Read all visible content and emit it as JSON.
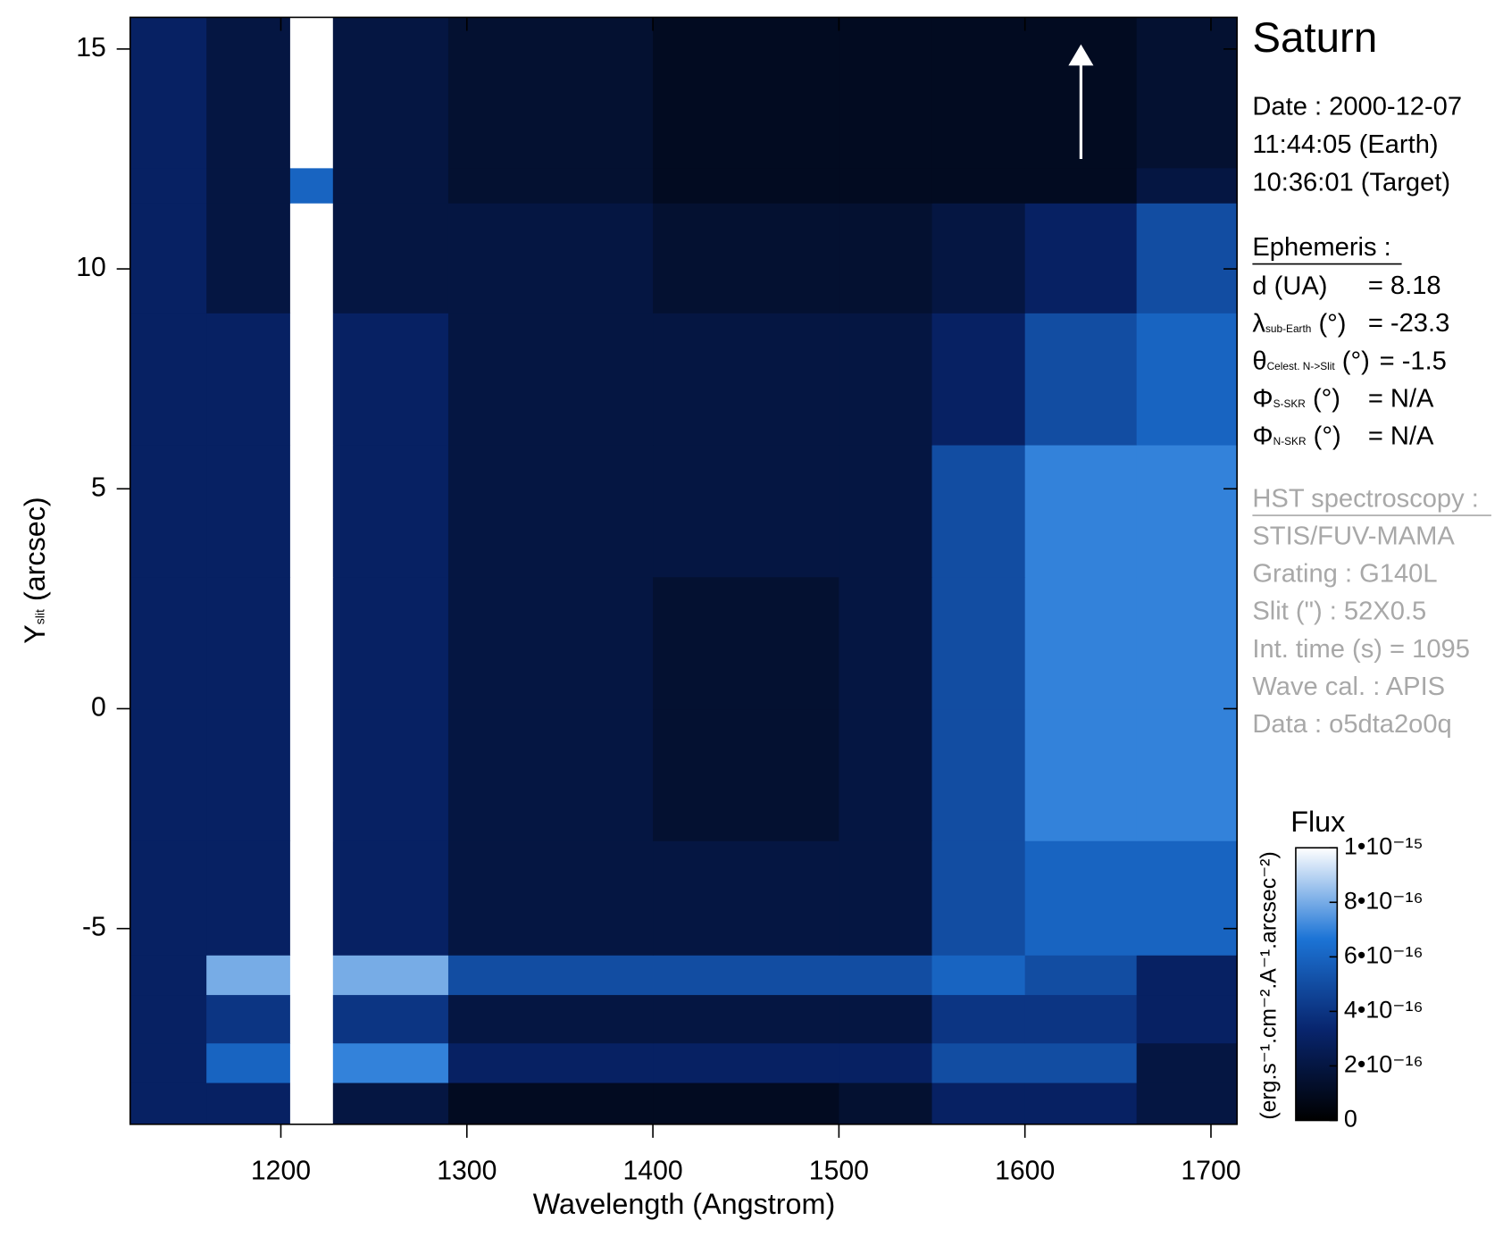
{
  "chart_data": {
    "type": "heatmap",
    "x_label": "Wavelength (Angstrom)",
    "y_label": {
      "main": "Y",
      "subscript": "slit",
      "suffix": " (arcsec)"
    },
    "xlim": [
      1119,
      1714
    ],
    "ylim": [
      -9.45,
      15.72
    ],
    "xticks": [
      1200,
      1300,
      1400,
      1500,
      1600,
      1700
    ],
    "yticks": [
      15,
      10,
      5,
      0,
      -5
    ],
    "x_edges": [
      1119,
      1160,
      1205,
      1228,
      1290,
      1400,
      1500,
      1550,
      1600,
      1660,
      1714
    ],
    "y_edges": [
      -9.45,
      -8.5,
      -7.6,
      -6.5,
      -5.6,
      -3,
      0,
      3,
      6,
      9,
      11.5,
      12.3,
      15.72
    ],
    "z": [
      [
        3e-16,
        3e-16,
        1e-15,
        2e-16,
        1e-16,
        1e-16,
        1.5e-16,
        3e-16,
        3e-16,
        2e-16
      ],
      [
        3e-16,
        6e-16,
        1e-15,
        7e-16,
        3e-16,
        3e-16,
        3e-16,
        5e-16,
        5e-16,
        2e-16
      ],
      [
        3e-16,
        4e-16,
        1e-15,
        4e-16,
        2e-16,
        2e-16,
        2e-16,
        4e-16,
        4e-16,
        3e-16
      ],
      [
        3e-16,
        8e-16,
        1e-15,
        8e-16,
        5e-16,
        5e-16,
        5e-16,
        6e-16,
        5e-16,
        3e-16
      ],
      [
        3e-16,
        3e-16,
        1e-15,
        3e-16,
        2e-16,
        2e-16,
        2e-16,
        5e-16,
        6e-16,
        6e-16
      ],
      [
        3e-16,
        3e-16,
        1e-15,
        3e-16,
        2e-16,
        1.5e-16,
        2e-16,
        5e-16,
        7e-16,
        7e-16
      ],
      [
        3e-16,
        3e-16,
        1e-15,
        3e-16,
        2e-16,
        1.5e-16,
        2e-16,
        5e-16,
        7e-16,
        7e-16
      ],
      [
        3e-16,
        3e-16,
        1e-15,
        3e-16,
        2e-16,
        2e-16,
        2e-16,
        5e-16,
        7e-16,
        7e-16
      ],
      [
        3e-16,
        3e-16,
        1e-15,
        3e-16,
        2e-16,
        2e-16,
        2e-16,
        3e-16,
        5e-16,
        6e-16
      ],
      [
        3e-16,
        2e-16,
        1e-15,
        2e-16,
        2e-16,
        1.5e-16,
        1.5e-16,
        2e-16,
        3e-16,
        5e-16
      ],
      [
        3e-16,
        2e-16,
        6e-16,
        2e-16,
        1.5e-16,
        1e-16,
        1e-16,
        1e-16,
        1e-16,
        2e-16
      ],
      [
        3e-16,
        2e-16,
        1e-15,
        2e-16,
        1.5e-16,
        1e-16,
        1e-16,
        1e-16,
        1e-16,
        1.5e-16
      ]
    ],
    "colormap": [
      "#000000",
      "#08256e",
      "#1c74d6",
      "#ffffff"
    ],
    "colorbar": {
      "title": "Flux",
      "label": "(erg.s⁻¹.cm⁻².A⁻¹.arcsec⁻²)",
      "lim": [
        0,
        1e-15
      ],
      "ticks": [
        0,
        {
          "value": 2e-16,
          "label": "2•10⁻¹⁶"
        },
        {
          "value": 4e-16,
          "label": "4•10⁻¹⁶"
        },
        {
          "value": 6e-16,
          "label": "6•10⁻¹⁶"
        },
        {
          "value": 8e-16,
          "label": "8•10⁻¹⁶"
        },
        {
          "value": 1e-15,
          "label": "1•10⁻¹⁵"
        }
      ]
    },
    "info": {
      "target": "Saturn",
      "date": [
        "Date : 2000-12-07",
        "11:44:05 (Earth)",
        "10:36:01 (Target)"
      ],
      "ephemeris_title": "Ephemeris :",
      "ephemeris": [
        {
          "symbol": "d (UA)",
          "value": "= 8.18"
        },
        {
          "symbol": "λ",
          "subscript": "sub-Earth",
          "suffix": " (°)",
          "value": "= -23.3"
        },
        {
          "symbol": "θ",
          "subscript": "Celest. N->Slit",
          "suffix": " (°)",
          "value": "= -1.5"
        },
        {
          "symbol": "Φ",
          "subscript": "S-SKR",
          "suffix": " (°)",
          "value": "= N/A"
        },
        {
          "symbol": "Φ",
          "subscript": "N-SKR",
          "suffix": " (°)",
          "value": "= N/A"
        }
      ],
      "hst_title": "HST spectroscopy :",
      "hst": [
        "STIS/FUV-MAMA",
        "Grating : G140L",
        "Slit (\") : 52X0.5",
        "Int. time (s) = 1095",
        "Wave cal. : APIS",
        "Data : o5dta2o0q"
      ]
    }
  }
}
